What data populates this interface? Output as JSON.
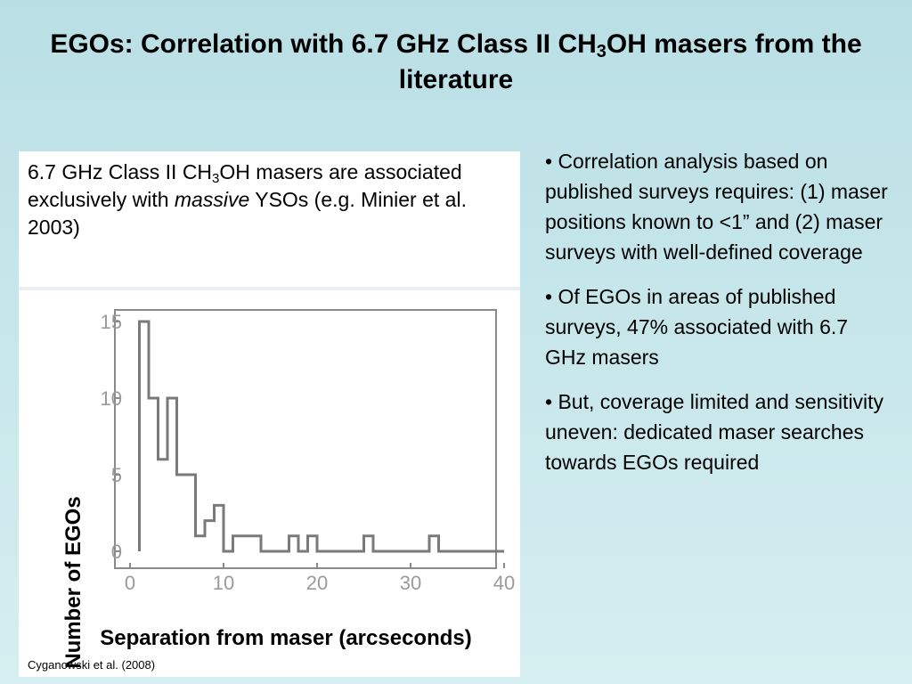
{
  "title": {
    "part1": "EGOs: Correlation with 6.7 GHz Class II CH",
    "subscript": "3",
    "part2": "OH masers from the literature"
  },
  "intro": {
    "line_a": "6.7 GHz Class II CH",
    "sub": "3",
    "line_b": "OH masers  are associated exclusively with ",
    "emphasis": "massive",
    "line_c": " YSOs (e.g. Minier et al. 2003)"
  },
  "bullets": [
    "• Correlation analysis based on published surveys requires: (1) maser positions known to <1” and (2) maser surveys with well-defined coverage",
    "• Of EGOs in areas of published surveys, 47% associated with 6.7 GHz masers",
    "• But, coverage limited and sensitivity uneven: dedicated maser searches towards EGOs required"
  ],
  "credit": "Cyganowski et al. (2008)",
  "colors": {
    "histogram_line": "#7a7a7a",
    "tick_text": "#9a9a9a"
  },
  "chart_data": {
    "type": "histogram",
    "xlabel": "Separation from maser (arcseconds)",
    "ylabel": "Number of EGOs",
    "xlim": [
      0,
      40
    ],
    "ylim": [
      0,
      15
    ],
    "xticks": [
      0,
      10,
      20,
      30,
      40
    ],
    "yticks": [
      0,
      5,
      10,
      15
    ],
    "bin_width": 1,
    "bins": [
      {
        "start": 1,
        "end": 2,
        "count": 15
      },
      {
        "start": 2,
        "end": 3,
        "count": 10
      },
      {
        "start": 3,
        "end": 4,
        "count": 6
      },
      {
        "start": 4,
        "end": 5,
        "count": 10
      },
      {
        "start": 5,
        "end": 6,
        "count": 5
      },
      {
        "start": 6,
        "end": 7,
        "count": 5
      },
      {
        "start": 7,
        "end": 8,
        "count": 1
      },
      {
        "start": 8,
        "end": 9,
        "count": 2
      },
      {
        "start": 9,
        "end": 10,
        "count": 3
      },
      {
        "start": 10,
        "end": 11,
        "count": 0
      },
      {
        "start": 11,
        "end": 14,
        "count": 1
      },
      {
        "start": 14,
        "end": 17,
        "count": 0
      },
      {
        "start": 17,
        "end": 18,
        "count": 1
      },
      {
        "start": 18,
        "end": 19,
        "count": 0
      },
      {
        "start": 19,
        "end": 20,
        "count": 1
      },
      {
        "start": 20,
        "end": 25,
        "count": 0
      },
      {
        "start": 25,
        "end": 26,
        "count": 1
      },
      {
        "start": 26,
        "end": 32,
        "count": 0
      },
      {
        "start": 32,
        "end": 33,
        "count": 1
      },
      {
        "start": 33,
        "end": 40,
        "count": 0
      }
    ]
  }
}
